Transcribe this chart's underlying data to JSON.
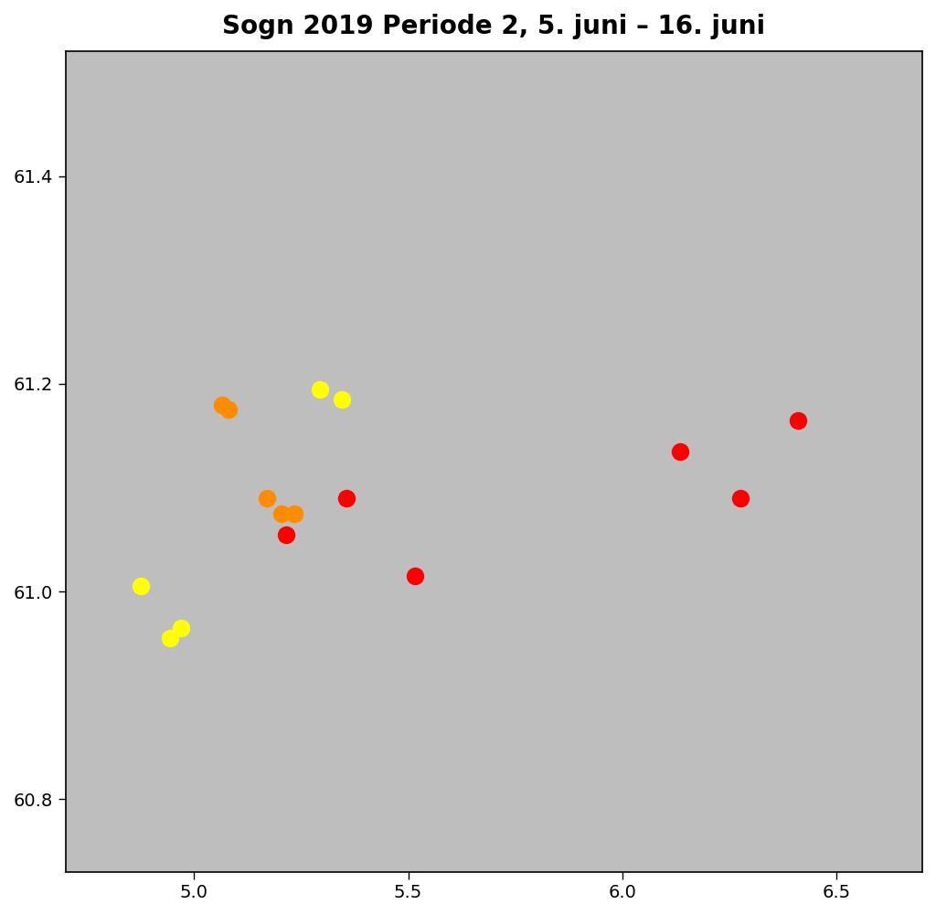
{
  "title": "Sogn 2019 Periode 2, 5. juni – 16. juni",
  "xlim": [
    4.7,
    6.7
  ],
  "ylim": [
    60.73,
    61.52
  ],
  "xticks": [
    5.0,
    5.5,
    6.0,
    6.5
  ],
  "yticks": [
    60.8,
    61.0,
    61.2,
    61.4
  ],
  "background_color": "#bebebe",
  "water_color": "#ffffff",
  "border_color": "#ffffff",
  "points": [
    {
      "lon": 4.875,
      "lat": 61.005,
      "color": "#ffff00"
    },
    {
      "lon": 4.97,
      "lat": 60.965,
      "color": "#ffff00"
    },
    {
      "lon": 4.945,
      "lat": 60.955,
      "color": "#ffff00"
    },
    {
      "lon": 5.065,
      "lat": 61.18,
      "color": "#ff8c00"
    },
    {
      "lon": 5.08,
      "lat": 61.175,
      "color": "#ff8c00"
    },
    {
      "lon": 5.17,
      "lat": 61.09,
      "color": "#ff8c00"
    },
    {
      "lon": 5.205,
      "lat": 61.075,
      "color": "#ff8c00"
    },
    {
      "lon": 5.235,
      "lat": 61.075,
      "color": "#ff8c00"
    },
    {
      "lon": 5.215,
      "lat": 61.055,
      "color": "#ff0000"
    },
    {
      "lon": 5.295,
      "lat": 61.195,
      "color": "#ffff00"
    },
    {
      "lon": 5.345,
      "lat": 61.185,
      "color": "#ffff00"
    },
    {
      "lon": 5.355,
      "lat": 61.09,
      "color": "#ff0000"
    },
    {
      "lon": 5.515,
      "lat": 61.015,
      "color": "#ff0000"
    },
    {
      "lon": 6.135,
      "lat": 61.135,
      "color": "#ff0000"
    },
    {
      "lon": 6.275,
      "lat": 61.09,
      "color": "#ff0000"
    },
    {
      "lon": 6.41,
      "lat": 61.165,
      "color": "#ff0000"
    }
  ],
  "marker_size": 14,
  "title_fontsize": 20,
  "tick_fontsize": 14,
  "fig_width": 10.24,
  "fig_height": 10.01
}
